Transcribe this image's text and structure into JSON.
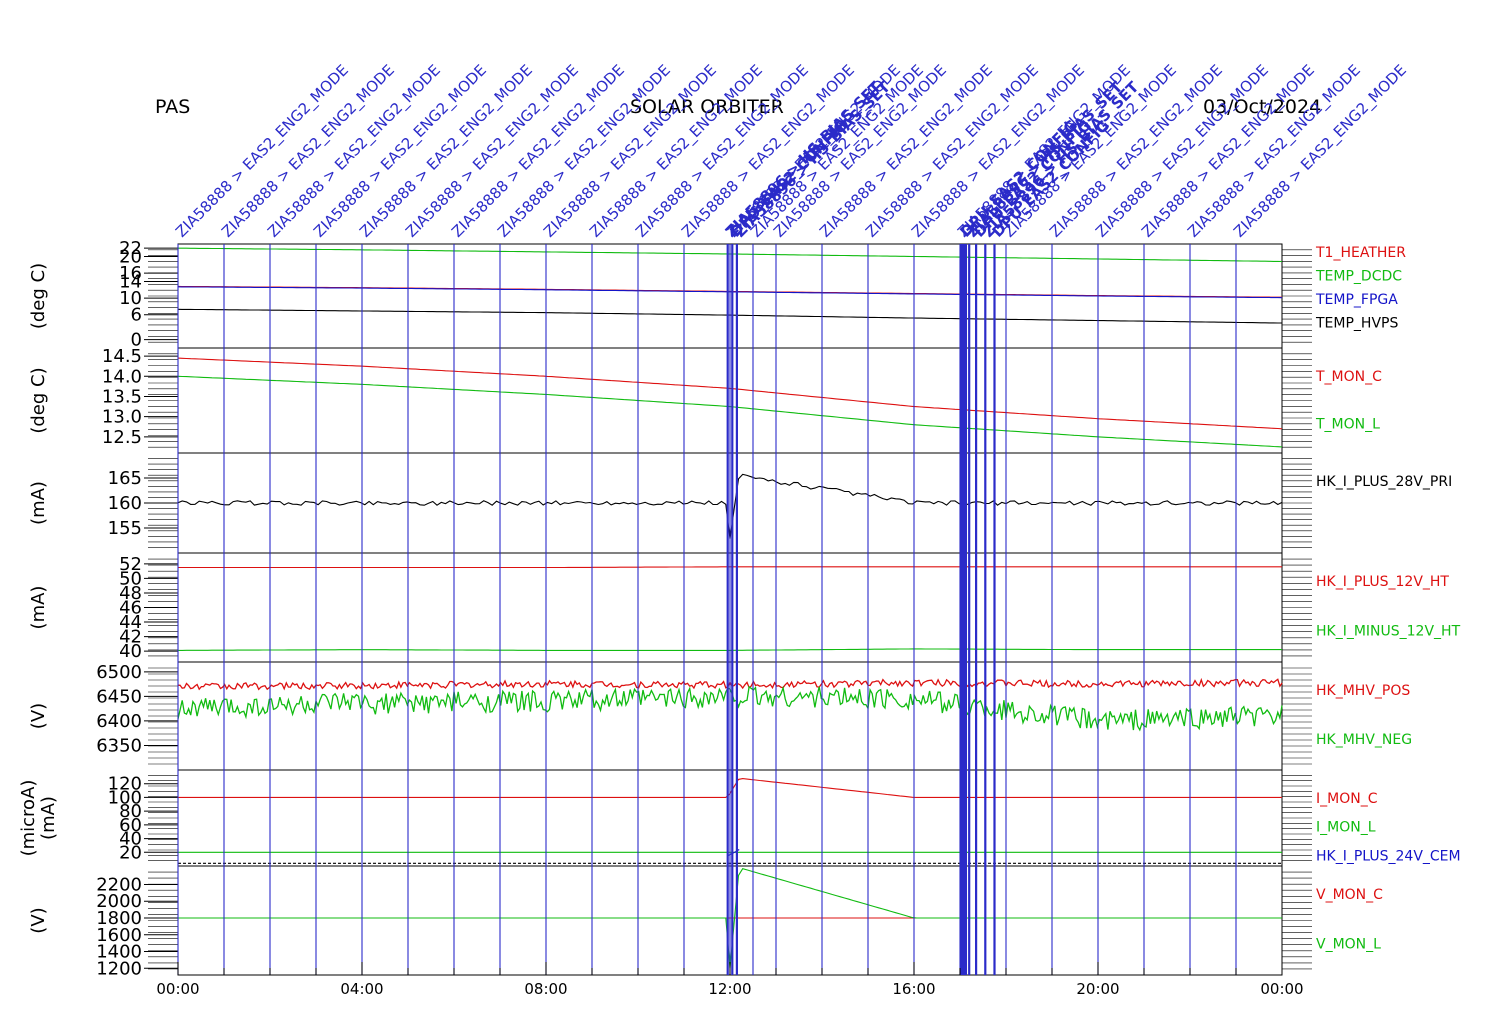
{
  "header": {
    "left": "PAS",
    "center": "SOLAR ORBITER",
    "right": "03/Oct/2024"
  },
  "colors": {
    "red": "#dd1111",
    "green": "#11bb11",
    "blue": "#1414c8",
    "black": "#000000",
    "event": "#2b2bc9"
  },
  "chart_data": {
    "type": "line",
    "x_axis": {
      "ticks": [
        "00:00",
        "04:00",
        "08:00",
        "12:00",
        "16:00",
        "20:00",
        "00:00"
      ],
      "range_hours": [
        0,
        24
      ]
    },
    "events": {
      "label": "ZIA58888 > EAS2_ENG2_MODE",
      "times_h": [
        0,
        1,
        2,
        3,
        4,
        5,
        6,
        7,
        8,
        9,
        10,
        11,
        12,
        12.5,
        13,
        14,
        15,
        16,
        17,
        18,
        19,
        20,
        21,
        22,
        23
      ],
      "overlap_labels": [
        "ZIA58896 > HS_BIAS_SET",
        "DPU_EAS2_CONFIG"
      ],
      "overlap_times_h": [
        11.95,
        12.05,
        12.15,
        17.05,
        17.2,
        17.35,
        17.55,
        17.75
      ]
    },
    "panels": [
      {
        "ylabel": "(deg C)",
        "ylim": [
          -2,
          23
        ],
        "yticks": [
          0,
          6,
          10,
          14,
          16,
          20,
          22
        ],
        "series": [
          {
            "name": "T1_HEATHER",
            "color": "red",
            "x": [
              0,
              4,
              8,
              12,
              16,
              20,
              24
            ],
            "y": [
              12.8,
              12.5,
              12.1,
              11.6,
              11.1,
              10.6,
              10.2
            ]
          },
          {
            "name": "TEMP_DCDC",
            "color": "green",
            "x": [
              0,
              4,
              8,
              12,
              16,
              20,
              24
            ],
            "y": [
              22.0,
              21.6,
              21.1,
              20.6,
              20.0,
              19.4,
              18.8
            ]
          },
          {
            "name": "TEMP_FPGA",
            "color": "blue",
            "x": [
              0,
              4,
              8,
              12,
              16,
              20,
              24
            ],
            "y": [
              12.7,
              12.4,
              12.0,
              11.5,
              11.0,
              10.5,
              10.1
            ]
          },
          {
            "name": "TEMP_HVPS",
            "color": "black",
            "x": [
              0,
              4,
              8,
              12,
              16,
              20,
              24
            ],
            "y": [
              7.3,
              6.9,
              6.5,
              5.9,
              5.2,
              4.6,
              4.0
            ]
          }
        ]
      },
      {
        "ylabel": "(deg C)",
        "ylim": [
          12.1,
          14.7
        ],
        "yticks": [
          12.5,
          13.0,
          13.5,
          14.0,
          14.5
        ],
        "ytick_labels": [
          "12.5",
          "13.0",
          "13.5",
          "14.0",
          "14.5"
        ],
        "series": [
          {
            "name": "T_MON_C",
            "color": "red",
            "x": [
              0,
              4,
              8,
              12,
              16,
              20,
              24
            ],
            "y": [
              14.45,
              14.25,
              14.0,
              13.7,
              13.25,
              12.95,
              12.7
            ]
          },
          {
            "name": "T_MON_L",
            "color": "green",
            "x": [
              0,
              4,
              8,
              12,
              16,
              20,
              24
            ],
            "y": [
              14.0,
              13.8,
              13.55,
              13.25,
              12.8,
              12.5,
              12.25
            ]
          }
        ]
      },
      {
        "ylabel": "(mA)",
        "ylim": [
          150,
          170
        ],
        "yticks": [
          155,
          160,
          165
        ],
        "series": [
          {
            "name": "HK_I_PLUS_28V_PRI",
            "color": "black",
            "x": [
              0,
              4,
              8,
              11.9,
              12.0,
              12.2,
              16,
              20,
              24
            ],
            "y": [
              160,
              160,
              160,
              160,
              153,
              165.5,
              160,
              160,
              160
            ]
          }
        ]
      },
      {
        "ylabel": "(mA)",
        "ylim": [
          38.5,
          53.5
        ],
        "yticks": [
          40,
          42,
          44,
          46,
          48,
          50,
          52
        ],
        "series": [
          {
            "name": "HK_I_PLUS_12V_HT",
            "color": "red",
            "x": [
              0,
              4,
              8,
              12,
              16,
              20,
              24
            ],
            "y": [
              51.5,
              51.5,
              51.5,
              51.6,
              51.6,
              51.6,
              51.6
            ]
          },
          {
            "name": "HK_I_MINUS_12V_HT",
            "color": "green",
            "x": [
              0,
              4,
              8,
              12,
              16,
              20,
              24
            ],
            "y": [
              40.1,
              40.2,
              40.1,
              40.1,
              40.3,
              40.2,
              40.2
            ]
          }
        ]
      },
      {
        "ylabel": "(V)",
        "ylim": [
          6300,
          6520
        ],
        "yticks": [
          6350,
          6400,
          6450,
          6500
        ],
        "series": [
          {
            "name": "HK_MHV_POS",
            "color": "red",
            "x": [
              0,
              4,
              8,
              12,
              16,
              20,
              24
            ],
            "y": [
              6470,
              6472,
              6475,
              6473,
              6478,
              6475,
              6478
            ]
          },
          {
            "name": "HK_MHV_NEG",
            "color": "green",
            "x": [
              0,
              4,
              8,
              12,
              16,
              20,
              24
            ],
            "y": [
              6425,
              6435,
              6440,
              6450,
              6445,
              6400,
              6410
            ]
          }
        ]
      },
      {
        "ylabel": "(microA)\n(mA)",
        "ylim": [
          0,
          140
        ],
        "yticks": [
          20,
          40,
          60,
          80,
          100,
          120
        ],
        "series": [
          {
            "name": "I_MON_C",
            "color": "red",
            "x": [
              0,
              4,
              8,
              11.95,
              12.2,
              16,
              20,
              24
            ],
            "y": [
              100,
              100,
              100,
              100,
              128,
              100,
              100,
              100
            ]
          },
          {
            "name": "I_MON_L",
            "color": "green",
            "x": [
              0,
              4,
              8,
              12,
              16,
              20,
              24
            ],
            "y": [
              20,
              20,
              20,
              20,
              20,
              20,
              20
            ]
          },
          {
            "name": "HK_I_PLUS_24V_CEM",
            "color": "blue",
            "x": [
              11.95,
              12.1,
              12.2
            ],
            "y": [
              15,
              20,
              24
            ]
          },
          {
            "name": "",
            "color": "black",
            "x": [
              0,
              4,
              8,
              12,
              16,
              20,
              24
            ],
            "y": [
              4,
              4,
              4,
              4,
              4,
              4,
              4
            ]
          }
        ]
      },
      {
        "ylabel": "(V)",
        "ylim": [
          1120,
          2420
        ],
        "yticks": [
          1200,
          1400,
          1600,
          1800,
          2000,
          2200
        ],
        "series": [
          {
            "name": "V_MON_C",
            "color": "red",
            "x": [
              0,
              12,
              24
            ],
            "y": [
              1800,
              1800,
              1800
            ]
          },
          {
            "name": "V_MON_L",
            "color": "green",
            "x": [
              0,
              4,
              8,
              11.95,
              12.0,
              12.2,
              16,
              20,
              24
            ],
            "y": [
              1800,
              1800,
              1800,
              1800,
              1200,
              2400,
              1800,
              1800,
              1800
            ]
          }
        ]
      }
    ]
  }
}
